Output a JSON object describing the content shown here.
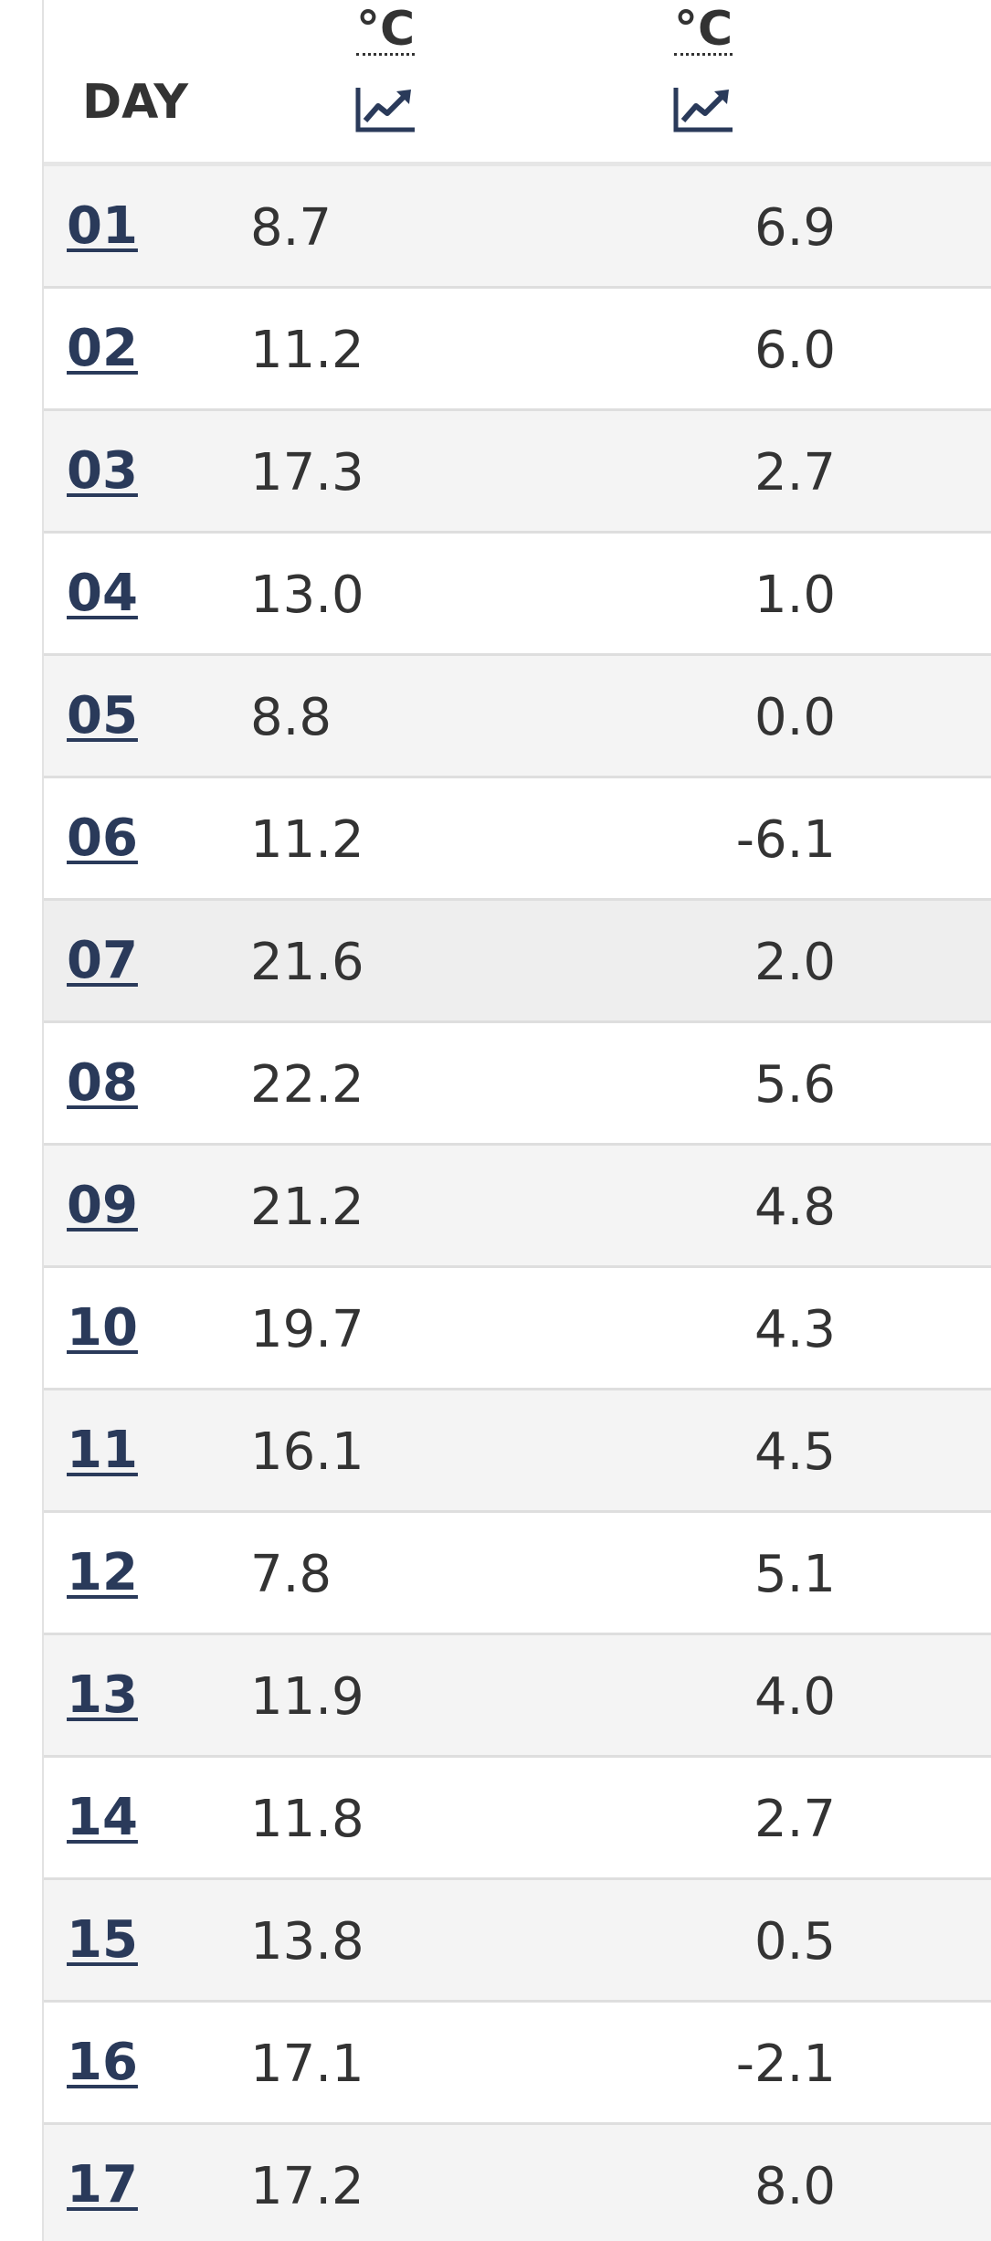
{
  "header": {
    "day_label": "DAY",
    "col1_unit": "°C",
    "col2_unit": "°C",
    "chart_icon": "chart-line-icon"
  },
  "rows": [
    {
      "day": "01",
      "v1": "8.7",
      "v2": "6.9"
    },
    {
      "day": "02",
      "v1": "11.2",
      "v2": "6.0"
    },
    {
      "day": "03",
      "v1": "17.3",
      "v2": "2.7"
    },
    {
      "day": "04",
      "v1": "13.0",
      "v2": "1.0"
    },
    {
      "day": "05",
      "v1": "8.8",
      "v2": "0.0"
    },
    {
      "day": "06",
      "v1": "11.2",
      "v2": "-6.1"
    },
    {
      "day": "07",
      "v1": "21.6",
      "v2": "2.0"
    },
    {
      "day": "08",
      "v1": "22.2",
      "v2": "5.6"
    },
    {
      "day": "09",
      "v1": "21.2",
      "v2": "4.8"
    },
    {
      "day": "10",
      "v1": "19.7",
      "v2": "4.3"
    },
    {
      "day": "11",
      "v1": "16.1",
      "v2": "4.5"
    },
    {
      "day": "12",
      "v1": "7.8",
      "v2": "5.1"
    },
    {
      "day": "13",
      "v1": "11.9",
      "v2": "4.0"
    },
    {
      "day": "14",
      "v1": "11.8",
      "v2": "2.7"
    },
    {
      "day": "15",
      "v1": "13.8",
      "v2": "0.5"
    },
    {
      "day": "16",
      "v1": "17.1",
      "v2": "-2.1"
    },
    {
      "day": "17",
      "v1": "17.2",
      "v2": "8.0"
    }
  ],
  "colors": {
    "link": "#2a3a5a",
    "row_alt": "#f4f4f4",
    "row_hover": "#eeeeee"
  }
}
